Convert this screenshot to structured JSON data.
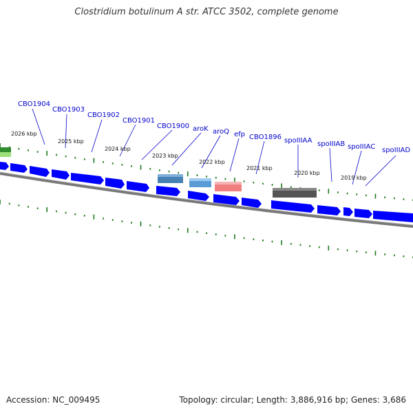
{
  "title": "Clostridium botulinum A str. ATCC 3502, complete genome",
  "footer": {
    "accession": "Accession: NC_009495",
    "summary": "Topology: circular; Length: 3,886,916 bp; Genes: 3,686"
  },
  "colors": {
    "gene_label": "#0000cc",
    "gene_arrow": "#0000ff",
    "tick": "#1a7a1a",
    "backbone": "#777777",
    "aroK": "#4682b4",
    "aroQ": "#5b9bd5",
    "efp": "#f08080",
    "spoIIIAA": "#555555",
    "edge_green": "#2e8b2e"
  },
  "kbp_labels": [
    "2026 kbp",
    "2025 kbp",
    "2024 kbp",
    "2023 kbp",
    "2022 kbp",
    "2021 kbp",
    "2020 kbp",
    "2019 kbp"
  ],
  "gene_labels": [
    "CBO1904",
    "CBO1903",
    "CBO1902",
    "CBO1901",
    "CBO1900",
    "aroK",
    "aroQ",
    "efp",
    "CBO1896",
    "spoIIIAA",
    "spoIIIAB",
    "spoIIIAC",
    "spoIIIAD"
  ]
}
